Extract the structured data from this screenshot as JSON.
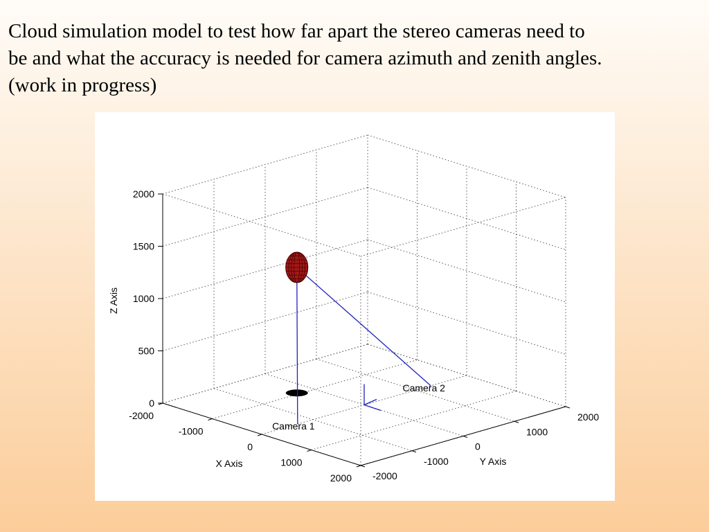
{
  "slide": {
    "title_lines": [
      "Cloud simulation model to test how far apart the stereo cameras need to",
      "be and what the accuracy is needed for camera azimuth and zenith angles.",
      "(work in progress)"
    ]
  },
  "chart_data": {
    "type": "scatter",
    "projection": "3d",
    "xlabel": "X Axis",
    "ylabel": "Y Axis",
    "zlabel": "Z Axis",
    "xlim": [
      -2000,
      2000
    ],
    "ylim": [
      -2000,
      2000
    ],
    "zlim": [
      0,
      2000
    ],
    "x_ticks": [
      "-2000",
      "-1000",
      "0",
      "1000",
      "2000"
    ],
    "y_ticks": [
      "-2000",
      "-1000",
      "0",
      "1000",
      "2000"
    ],
    "z_ticks": [
      "0",
      "500",
      "1000",
      "1500",
      "2000"
    ],
    "grid": true,
    "grid_style": "dotted",
    "cloud": {
      "x": -1050,
      "y": -300,
      "z": 1200,
      "rx": 230,
      "rz": 150,
      "color": "#a01818"
    },
    "cloud_shadow": {
      "x": -1050,
      "y": -300,
      "z": 0,
      "color": "#000000"
    },
    "cameras": [
      {
        "name": "Camera 1",
        "x": 0,
        "y": -1300,
        "z": 0
      },
      {
        "name": "Camera 2",
        "x": 0,
        "y": 1300,
        "z": 0
      }
    ],
    "line_color": "#2020c0",
    "frame_color": "#2020c0"
  }
}
